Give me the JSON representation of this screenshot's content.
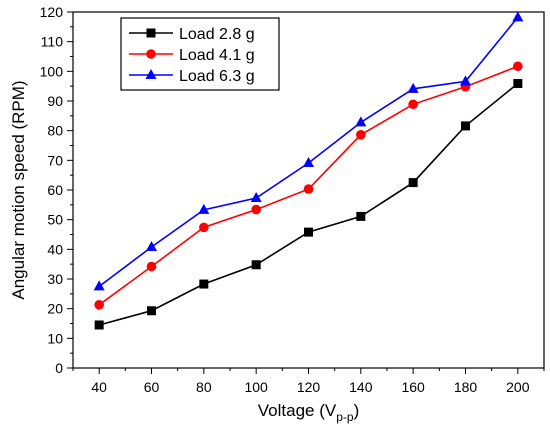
{
  "chart_data": {
    "type": "line",
    "title": "",
    "xlabel": "Voltage (V",
    "xlabel_sub": "p-p",
    "xlabel_close": ")",
    "ylabel": "Angular motion speed (RPM)",
    "x": [
      40,
      60,
      80,
      100,
      120,
      140,
      160,
      180,
      200
    ],
    "xlim": [
      30,
      210
    ],
    "ylim": [
      0,
      120
    ],
    "xticks": [
      40,
      60,
      80,
      100,
      120,
      140,
      160,
      180,
      200
    ],
    "yticks": [
      0,
      10,
      20,
      30,
      40,
      50,
      60,
      70,
      80,
      90,
      100,
      110,
      120
    ],
    "grid": false,
    "legend_position": "top-left",
    "series": [
      {
        "name": "Load 2.8 g",
        "color": "#000000",
        "marker": "square",
        "values": [
          14.5,
          19.3,
          28.3,
          34.8,
          45.8,
          51.1,
          62.5,
          81.6,
          95.9
        ]
      },
      {
        "name": "Load 4.1 g",
        "color": "#ff0000",
        "marker": "circle",
        "values": [
          21.3,
          34.2,
          47.4,
          53.4,
          60.3,
          78.6,
          88.9,
          94.8,
          101.7
        ]
      },
      {
        "name": "Load 6.3 g",
        "color": "#0000ff",
        "marker": "triangle",
        "values": [
          27.5,
          40.8,
          53.3,
          57.3,
          69.1,
          82.8,
          94.1,
          96.6,
          118.2
        ]
      }
    ]
  }
}
